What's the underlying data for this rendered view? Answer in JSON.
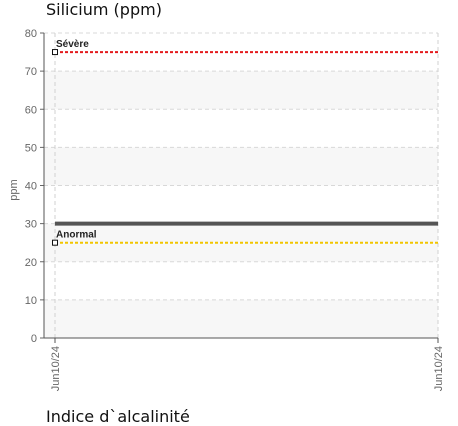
{
  "chart_data": {
    "type": "line",
    "title": "Silicium (ppm)",
    "ylabel": "ppm",
    "xlabel": "",
    "ylim": [
      0,
      80
    ],
    "yticks": [
      0,
      10,
      20,
      30,
      40,
      50,
      60,
      70,
      80
    ],
    "x": [
      "Jun10/24",
      "Jun10/24"
    ],
    "grid": true,
    "series": [
      {
        "values": [
          30,
          30
        ],
        "color": "#555555"
      }
    ],
    "thresholds": [
      {
        "name": "Sévère",
        "value": 75,
        "color": "#e31a1c"
      },
      {
        "name": "Anormal",
        "value": 25,
        "color": "#f2c500"
      }
    ]
  },
  "next_section": {
    "title": "Indice d`alcalinité"
  }
}
